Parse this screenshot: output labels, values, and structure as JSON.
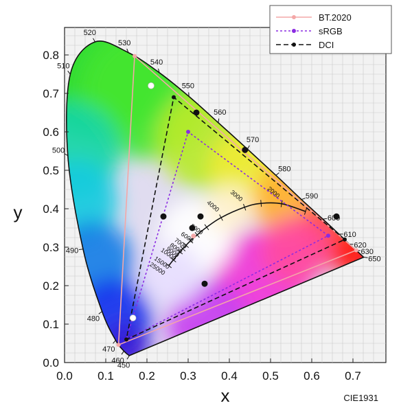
{
  "chart_data": {
    "type": "scatter",
    "xlabel": "x",
    "ylabel": "y",
    "xlim": [
      0,
      0.75
    ],
    "ylim": [
      0,
      0.85
    ],
    "x_ticks": [
      "0.0",
      "0.1",
      "0.2",
      "0.3",
      "0.4",
      "0.5",
      "0.6",
      "0.7"
    ],
    "y_ticks": [
      "0.0",
      "0.1",
      "0.2",
      "0.3",
      "0.4",
      "0.5",
      "0.6",
      "0.7",
      "0.8"
    ],
    "grid": true,
    "legend_position": "top-right",
    "caption": "CIE1931",
    "spectral_locus": [
      {
        "nm": "450",
        "x": 0.157,
        "y": 0.018
      },
      {
        "nm": "460",
        "x": 0.144,
        "y": 0.03
      },
      {
        "nm": "470",
        "x": 0.124,
        "y": 0.058
      },
      {
        "nm": "480",
        "x": 0.091,
        "y": 0.133
      },
      {
        "nm": "490",
        "x": 0.045,
        "y": 0.295
      },
      {
        "nm": "500",
        "x": 0.008,
        "y": 0.538
      },
      {
        "nm": "510",
        "x": 0.014,
        "y": 0.75
      },
      {
        "nm": "520",
        "x": 0.074,
        "y": 0.834
      },
      {
        "nm": "530",
        "x": 0.155,
        "y": 0.806
      },
      {
        "nm": "540",
        "x": 0.23,
        "y": 0.754
      },
      {
        "nm": "550",
        "x": 0.302,
        "y": 0.692
      },
      {
        "nm": "560",
        "x": 0.373,
        "y": 0.624
      },
      {
        "nm": "570",
        "x": 0.444,
        "y": 0.555
      },
      {
        "nm": "580",
        "x": 0.513,
        "y": 0.487
      },
      {
        "nm": "590",
        "x": 0.575,
        "y": 0.424
      },
      {
        "nm": "600",
        "x": 0.627,
        "y": 0.373
      },
      {
        "nm": "610",
        "x": 0.666,
        "y": 0.334
      },
      {
        "nm": "620",
        "x": 0.691,
        "y": 0.308
      },
      {
        "nm": "630",
        "x": 0.708,
        "y": 0.292
      },
      {
        "nm": "650",
        "x": 0.726,
        "y": 0.274
      }
    ],
    "planckian_locus": [
      {
        "cct": "1500",
        "x": 0.585,
        "y": 0.393
      },
      {
        "cct": "2000",
        "x": 0.527,
        "y": 0.413
      },
      {
        "cct": "2500",
        "x": 0.477,
        "y": 0.414
      },
      {
        "cct": "3000",
        "x": 0.437,
        "y": 0.404
      },
      {
        "cct": "4000",
        "x": 0.38,
        "y": 0.377
      },
      {
        "cct": "5000",
        "x": 0.345,
        "y": 0.352
      },
      {
        "cct": "6000",
        "x": 0.322,
        "y": 0.332
      },
      {
        "cct": "7000",
        "x": 0.306,
        "y": 0.317
      },
      {
        "cct": "8000",
        "x": 0.295,
        "y": 0.305
      },
      {
        "cct": "9000",
        "x": 0.287,
        "y": 0.296
      },
      {
        "cct": "10000",
        "x": 0.28,
        "y": 0.288
      },
      {
        "cct": "15000",
        "x": 0.264,
        "y": 0.267
      },
      {
        "cct": "25000",
        "x": 0.253,
        "y": 0.252
      }
    ],
    "cct_labels": [
      "3000",
      "2000",
      "4000",
      "5000",
      "6000",
      "7000",
      "8000",
      "9000",
      "10000",
      "15000",
      "25000"
    ],
    "series": [
      {
        "name": "BT.2020",
        "color": "#f4a7a7",
        "dash": "solid",
        "x": [
          0.708,
          0.17,
          0.131,
          0.708
        ],
        "y": [
          0.292,
          0.797,
          0.046,
          0.292
        ]
      },
      {
        "name": "sRGB",
        "color": "#8a2be2",
        "dash": "dotted",
        "x": [
          0.64,
          0.3,
          0.15,
          0.64
        ],
        "y": [
          0.33,
          0.6,
          0.06,
          0.33
        ]
      },
      {
        "name": "DCI",
        "color": "#111111",
        "dash": "dashed",
        "x": [
          0.68,
          0.265,
          0.15,
          0.68
        ],
        "y": [
          0.32,
          0.69,
          0.06,
          0.32
        ]
      }
    ],
    "black_points": [
      {
        "x": 0.66,
        "y": 0.38
      },
      {
        "x": 0.32,
        "y": 0.65
      },
      {
        "x": 0.438,
        "y": 0.553
      },
      {
        "x": 0.24,
        "y": 0.38
      },
      {
        "x": 0.33,
        "y": 0.38
      },
      {
        "x": 0.31,
        "y": 0.35
      },
      {
        "x": 0.34,
        "y": 0.205
      }
    ],
    "white_points": [
      {
        "x": 0.21,
        "y": 0.72
      },
      {
        "x": 0.166,
        "y": 0.116
      }
    ],
    "pink_points": [
      {
        "x": 0.313,
        "y": 0.329
      }
    ]
  }
}
